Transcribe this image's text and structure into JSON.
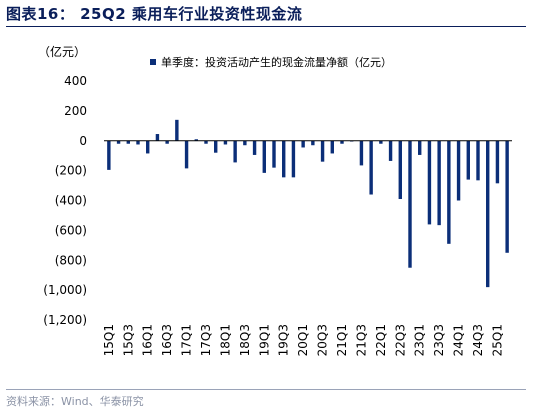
{
  "figure": {
    "title": "图表16：  25Q2 乘用车行业投资性现金流",
    "unit": "（亿元）",
    "source": "资料来源：Wind、华泰研究"
  },
  "chart_data": {
    "type": "bar",
    "title": "图表16：  25Q2 乘用车行业投资性现金流",
    "ylabel": "（亿元）",
    "ylim": [
      -1200,
      400
    ],
    "yticks": [
      400,
      200,
      0,
      -200,
      -400,
      -600,
      -800,
      -1000,
      -1200
    ],
    "ytick_labels": [
      "400",
      "200",
      "0",
      "(200)",
      "(400)",
      "(600)",
      "(800)",
      "(1,000)",
      "(1,200)"
    ],
    "grid": false,
    "legend_position": "top",
    "color": "#0b2e78",
    "categories": [
      "15Q1",
      "15Q2",
      "15Q3",
      "15Q4",
      "16Q1",
      "16Q2",
      "16Q3",
      "16Q4",
      "17Q1",
      "17Q2",
      "17Q3",
      "17Q4",
      "18Q1",
      "18Q2",
      "18Q3",
      "18Q4",
      "19Q1",
      "19Q2",
      "19Q3",
      "19Q4",
      "20Q1",
      "20Q2",
      "20Q3",
      "20Q4",
      "21Q1",
      "21Q2",
      "21Q3",
      "21Q4",
      "22Q1",
      "22Q2",
      "22Q3",
      "22Q4",
      "23Q1",
      "23Q2",
      "23Q3",
      "23Q4",
      "24Q1",
      "24Q2",
      "24Q3",
      "24Q4",
      "25Q1",
      "25Q2"
    ],
    "xtick_labels": [
      "15Q1",
      "15Q3",
      "16Q1",
      "16Q3",
      "17Q1",
      "17Q3",
      "18Q1",
      "18Q3",
      "19Q1",
      "19Q3",
      "20Q1",
      "20Q3",
      "21Q1",
      "21Q3",
      "22Q1",
      "22Q3",
      "23Q1",
      "23Q3",
      "24Q1",
      "24Q3",
      "25Q1"
    ],
    "series": [
      {
        "name": "单季度：投资活动产生的现金流量净额（亿元）",
        "values": [
          -195,
          -20,
          -20,
          -25,
          -85,
          45,
          -20,
          140,
          -185,
          10,
          -20,
          -80,
          -25,
          -145,
          -30,
          -95,
          -215,
          -180,
          -245,
          -245,
          -45,
          -30,
          -140,
          -85,
          -20,
          -5,
          -165,
          -360,
          -20,
          -135,
          -390,
          -850,
          -95,
          -560,
          -565,
          -690,
          -400,
          -260,
          -265,
          -980,
          -285,
          -750
        ]
      }
    ]
  }
}
